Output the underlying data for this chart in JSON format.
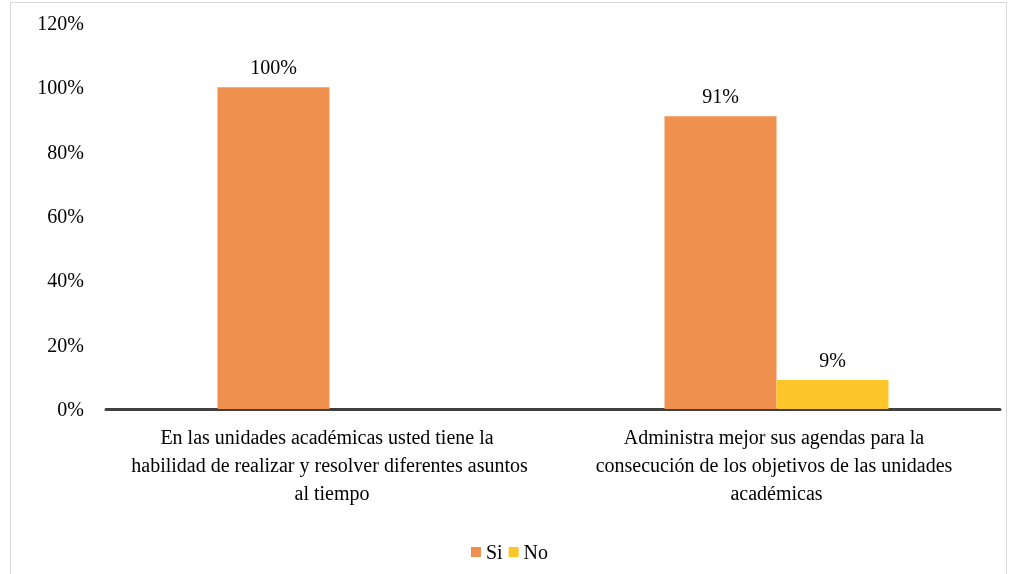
{
  "chart_data": {
    "type": "bar",
    "categories": [
      "En las unidades académicas usted tiene la habilidad de realizar y resolver diferentes asuntos al tiempo",
      "Administra mejor sus agendas para la consecución de los objetivos de las unidades académicas"
    ],
    "series": [
      {
        "name": "Si",
        "color": "#f0914f",
        "values": [
          100,
          91
        ],
        "value_labels": [
          "100%",
          "91%"
        ]
      },
      {
        "name": "No",
        "color": "#ffc629",
        "values": [
          null,
          9
        ],
        "value_labels": [
          null,
          "9%"
        ]
      }
    ],
    "ylim": [
      0,
      120
    ],
    "yticks": [
      {
        "value": 0,
        "label": "0%"
      },
      {
        "value": 20,
        "label": "20%"
      },
      {
        "value": 40,
        "label": "40%"
      },
      {
        "value": 60,
        "label": "60%"
      },
      {
        "value": 80,
        "label": "80%"
      },
      {
        "value": 100,
        "label": "100%"
      },
      {
        "value": 120,
        "label": "120%"
      }
    ],
    "grid": false,
    "legend": "bottom"
  }
}
